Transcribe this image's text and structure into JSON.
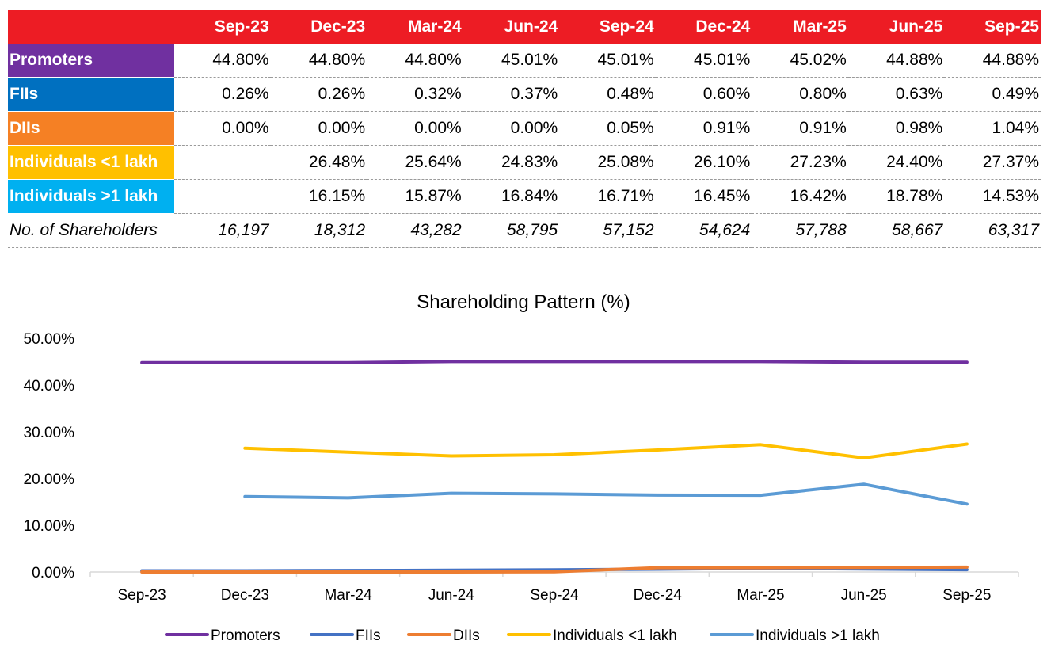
{
  "table": {
    "columns": [
      "Sep-23",
      "Dec-23",
      "Mar-24",
      "Jun-24",
      "Sep-24",
      "Dec-24",
      "Mar-25",
      "Jun-25",
      "Sep-25"
    ],
    "rows": [
      {
        "label": "Promoters",
        "color": "#7030a0",
        "values": [
          "44.80%",
          "44.80%",
          "44.80%",
          "45.01%",
          "45.01%",
          "45.01%",
          "45.02%",
          "44.88%",
          "44.88%"
        ]
      },
      {
        "label": "FIIs",
        "color": "#0070c0",
        "values": [
          "0.26%",
          "0.26%",
          "0.32%",
          "0.37%",
          "0.48%",
          "0.60%",
          "0.80%",
          "0.63%",
          "0.49%"
        ]
      },
      {
        "label": "DIIs",
        "color": "#f58024",
        "values": [
          "0.00%",
          "0.00%",
          "0.00%",
          "0.00%",
          "0.05%",
          "0.91%",
          "0.91%",
          "0.98%",
          "1.04%"
        ]
      },
      {
        "label": "Individuals <1 lakh",
        "color": "#ffc000",
        "values": [
          "",
          "26.48%",
          "25.64%",
          "24.83%",
          "25.08%",
          "26.10%",
          "27.23%",
          "24.40%",
          "27.37%"
        ]
      },
      {
        "label": "Individuals >1 lakh",
        "color": "#00b0f0",
        "values": [
          "",
          "16.15%",
          "15.87%",
          "16.84%",
          "16.71%",
          "16.45%",
          "16.42%",
          "18.78%",
          "14.53%"
        ]
      }
    ],
    "shareholders": {
      "label": "No. of Shareholders",
      "values": [
        "16,197",
        "18,312",
        "43,282",
        "58,795",
        "57,152",
        "54,624",
        "57,788",
        "58,667",
        "63,317"
      ]
    }
  },
  "chart_data": {
    "type": "line",
    "title": "Shareholding Pattern (%)",
    "xlabel": "",
    "ylabel": "",
    "categories": [
      "Sep-23",
      "Dec-23",
      "Mar-24",
      "Jun-24",
      "Sep-24",
      "Dec-24",
      "Mar-25",
      "Jun-25",
      "Sep-25"
    ],
    "ylim": [
      0,
      50
    ],
    "yticks": [
      "0.00%",
      "10.00%",
      "20.00%",
      "30.00%",
      "40.00%",
      "50.00%"
    ],
    "legend_position": "bottom",
    "series": [
      {
        "name": "Promoters",
        "color": "#7030a0",
        "values": [
          44.8,
          44.8,
          44.8,
          45.01,
          45.01,
          45.01,
          45.02,
          44.88,
          44.88
        ]
      },
      {
        "name": "FIIs",
        "color": "#4472c4",
        "values": [
          0.26,
          0.26,
          0.32,
          0.37,
          0.48,
          0.6,
          0.8,
          0.63,
          0.49
        ]
      },
      {
        "name": "DIIs",
        "color": "#ed7d31",
        "values": [
          0.0,
          0.0,
          0.0,
          0.0,
          0.05,
          0.91,
          0.91,
          0.98,
          1.04
        ]
      },
      {
        "name": "Individuals <1 lakh",
        "color": "#ffc000",
        "values": [
          null,
          26.48,
          25.64,
          24.83,
          25.08,
          26.1,
          27.23,
          24.4,
          27.37
        ]
      },
      {
        "name": "Individuals >1 lakh",
        "color": "#5b9bd5",
        "values": [
          null,
          16.15,
          15.87,
          16.84,
          16.71,
          16.45,
          16.42,
          18.78,
          14.53
        ]
      }
    ]
  }
}
